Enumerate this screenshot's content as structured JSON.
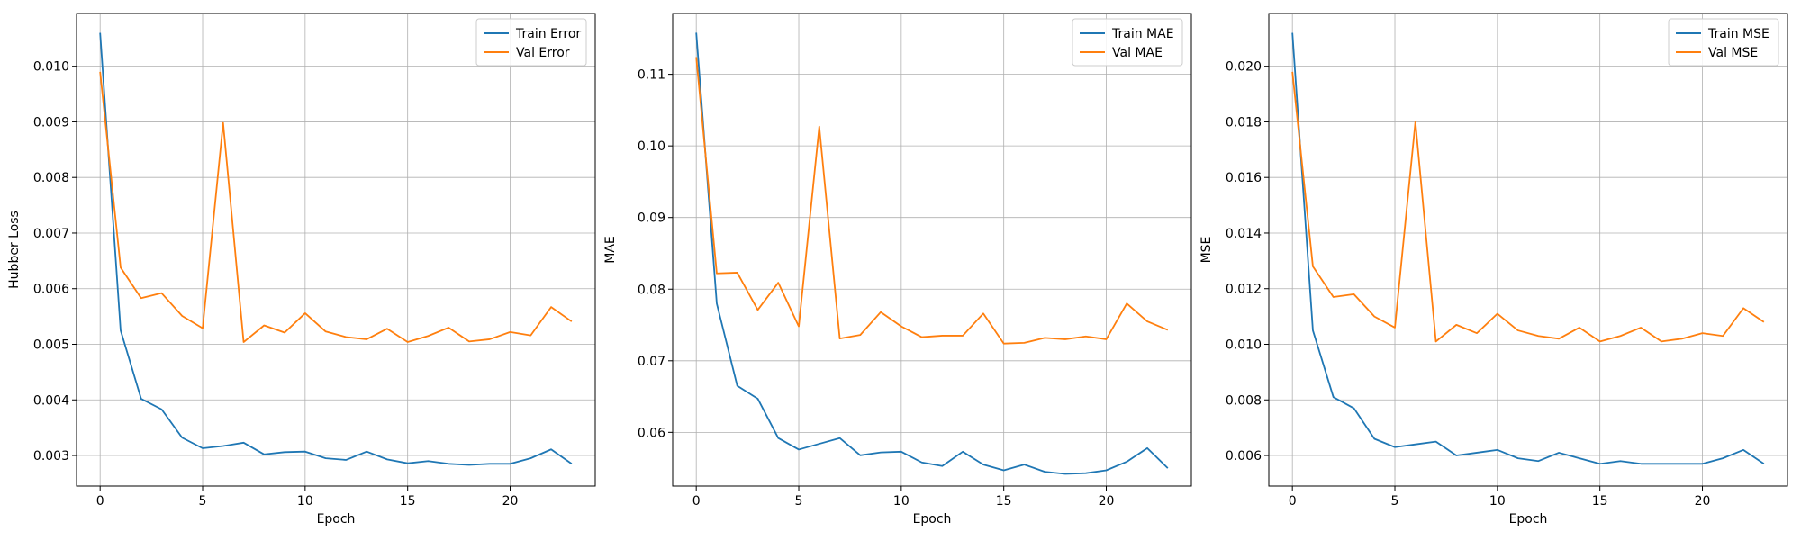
{
  "chart_data": [
    {
      "type": "line",
      "title": "",
      "xlabel": "Epoch",
      "ylabel": "Hubber Loss",
      "xlim": [
        -1.15,
        24.15
      ],
      "ylim": [
        0.00245,
        0.01095
      ],
      "xticks": [
        0,
        5,
        10,
        15,
        20
      ],
      "xtick_labels": [
        "0",
        "5",
        "10",
        "15",
        "20"
      ],
      "yticks": [
        0.003,
        0.004,
        0.005,
        0.006,
        0.007,
        0.008,
        0.009,
        0.01
      ],
      "ytick_labels": [
        "0.003",
        "0.004",
        "0.005",
        "0.006",
        "0.007",
        "0.008",
        "0.009",
        "0.010"
      ],
      "grid": true,
      "legend_position": "top-right",
      "x": [
        0,
        1,
        2,
        3,
        4,
        5,
        6,
        7,
        8,
        9,
        10,
        11,
        12,
        13,
        14,
        15,
        16,
        17,
        18,
        19,
        20,
        21,
        22,
        23
      ],
      "series": [
        {
          "name": "Train Error",
          "color": "#1f77b4",
          "values": [
            0.0106,
            0.00525,
            0.00402,
            0.00383,
            0.00332,
            0.00313,
            0.00317,
            0.00323,
            0.00302,
            0.00306,
            0.00307,
            0.00295,
            0.00292,
            0.00307,
            0.00293,
            0.00286,
            0.0029,
            0.00285,
            0.00283,
            0.00285,
            0.00285,
            0.00295,
            0.00311,
            0.00285
          ]
        },
        {
          "name": "Val Error",
          "color": "#ff7f0e",
          "values": [
            0.0099,
            0.00638,
            0.00583,
            0.00592,
            0.00551,
            0.00529,
            0.00898,
            0.00504,
            0.00534,
            0.00521,
            0.00556,
            0.00523,
            0.00513,
            0.00509,
            0.00528,
            0.00504,
            0.00515,
            0.0053,
            0.00505,
            0.00509,
            0.00522,
            0.00516,
            0.00567,
            0.00541
          ]
        }
      ]
    },
    {
      "type": "line",
      "title": "",
      "xlabel": "Epoch",
      "ylabel": "MAE",
      "xlim": [
        -1.15,
        24.15
      ],
      "ylim": [
        0.0525,
        0.1185
      ],
      "xticks": [
        0,
        5,
        10,
        15,
        20
      ],
      "xtick_labels": [
        "0",
        "5",
        "10",
        "15",
        "20"
      ],
      "yticks": [
        0.06,
        0.07,
        0.08,
        0.09,
        0.1,
        0.11
      ],
      "ytick_labels": [
        "0.06",
        "0.07",
        "0.08",
        "0.09",
        "0.10",
        "0.11"
      ],
      "grid": true,
      "legend_position": "top-right",
      "x": [
        0,
        1,
        2,
        3,
        4,
        5,
        6,
        7,
        8,
        9,
        10,
        11,
        12,
        13,
        14,
        15,
        16,
        17,
        18,
        19,
        20,
        21,
        22,
        23
      ],
      "series": [
        {
          "name": "Train MAE",
          "color": "#1f77b4",
          "values": [
            0.1158,
            0.078,
            0.0665,
            0.0647,
            0.0592,
            0.0576,
            0.0584,
            0.0592,
            0.0568,
            0.0572,
            0.0573,
            0.0558,
            0.0553,
            0.0573,
            0.0555,
            0.0547,
            0.0555,
            0.0545,
            0.0542,
            0.0543,
            0.0547,
            0.0559,
            0.0578,
            0.055
          ]
        },
        {
          "name": "Val MAE",
          "color": "#ff7f0e",
          "values": [
            0.1124,
            0.0822,
            0.0823,
            0.0771,
            0.0809,
            0.0748,
            0.1027,
            0.0731,
            0.0736,
            0.0768,
            0.0748,
            0.0733,
            0.0735,
            0.0735,
            0.0766,
            0.0724,
            0.0725,
            0.0732,
            0.073,
            0.0734,
            0.073,
            0.078,
            0.0755,
            0.0743
          ]
        }
      ]
    },
    {
      "type": "line",
      "title": "",
      "xlabel": "Epoch",
      "ylabel": "MSE",
      "xlim": [
        -1.15,
        24.15
      ],
      "ylim": [
        0.0049,
        0.0219
      ],
      "xticks": [
        0,
        5,
        10,
        15,
        20
      ],
      "xtick_labels": [
        "0",
        "5",
        "10",
        "15",
        "20"
      ],
      "yticks": [
        0.006,
        0.008,
        0.01,
        0.012,
        0.014,
        0.016,
        0.018,
        0.02
      ],
      "ytick_labels": [
        "0.006",
        "0.008",
        "0.010",
        "0.012",
        "0.014",
        "0.016",
        "0.018",
        "0.020"
      ],
      "grid": true,
      "legend_position": "top-right",
      "x": [
        0,
        1,
        2,
        3,
        4,
        5,
        6,
        7,
        8,
        9,
        10,
        11,
        12,
        13,
        14,
        15,
        16,
        17,
        18,
        19,
        20,
        21,
        22,
        23
      ],
      "series": [
        {
          "name": "Train MSE",
          "color": "#1f77b4",
          "values": [
            0.0212,
            0.0105,
            0.0081,
            0.0077,
            0.0066,
            0.0063,
            0.0064,
            0.0065,
            0.006,
            0.0061,
            0.0062,
            0.0059,
            0.0058,
            0.0061,
            0.0059,
            0.0057,
            0.0058,
            0.0057,
            0.0057,
            0.0057,
            0.0057,
            0.0059,
            0.0062,
            0.0057
          ]
        },
        {
          "name": "Val MSE",
          "color": "#ff7f0e",
          "values": [
            0.0198,
            0.0128,
            0.0117,
            0.0118,
            0.011,
            0.0106,
            0.018,
            0.0101,
            0.0107,
            0.0104,
            0.0111,
            0.0105,
            0.0103,
            0.0102,
            0.0106,
            0.0101,
            0.0103,
            0.0106,
            0.0101,
            0.0102,
            0.0104,
            0.0103,
            0.0113,
            0.0108
          ]
        }
      ]
    }
  ]
}
